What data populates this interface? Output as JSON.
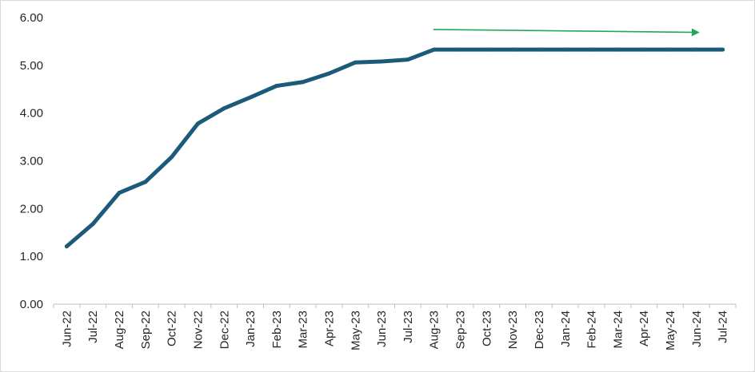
{
  "chart_data": {
    "type": "line",
    "title": "",
    "xlabel": "",
    "ylabel": "",
    "categories": [
      "Jun-22",
      "Jul-22",
      "Aug-22",
      "Sep-22",
      "Oct-22",
      "Nov-22",
      "Dec-22",
      "Jan-23",
      "Feb-23",
      "Mar-23",
      "Apr-23",
      "May-23",
      "Jun-23",
      "Jul-23",
      "Aug-23",
      "Sep-23",
      "Oct-23",
      "Nov-23",
      "Dec-23",
      "Jan-24",
      "Feb-24",
      "Mar-24",
      "Apr-24",
      "May-24",
      "Jun-24",
      "Jul-24"
    ],
    "series": [
      {
        "values": [
          1.21,
          1.68,
          2.33,
          2.56,
          3.08,
          3.78,
          4.1,
          4.33,
          4.57,
          4.65,
          4.83,
          5.06,
          5.08,
          5.12,
          5.33,
          5.33,
          5.33,
          5.33,
          5.33,
          5.33,
          5.33,
          5.33,
          5.33,
          5.33,
          5.33,
          5.33
        ],
        "color": "#1b5a78"
      }
    ],
    "y_ticks": [
      "0.00",
      "1.00",
      "2.00",
      "3.00",
      "4.00",
      "5.00",
      "6.00"
    ],
    "ylim": [
      0,
      6
    ],
    "grid": false,
    "legend": "none",
    "annotations": [
      {
        "type": "arrow",
        "color": "#1fa85a",
        "from": {
          "x": "Aug-23",
          "y": 5.75
        },
        "to": {
          "x": "Jun-24",
          "y": 5.69
        }
      }
    ]
  }
}
